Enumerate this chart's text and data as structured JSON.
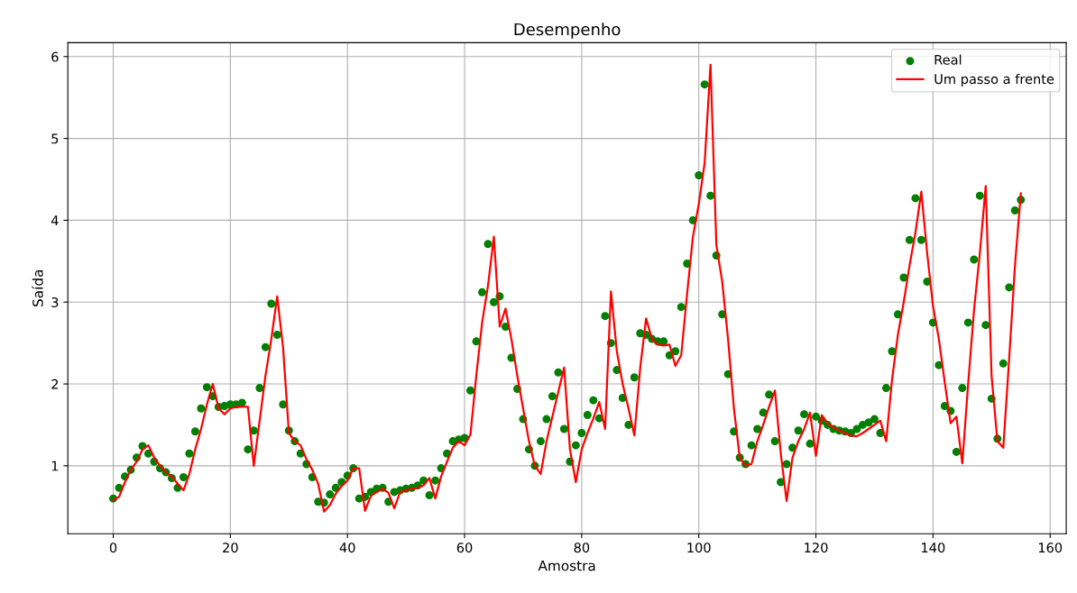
{
  "chart_data": {
    "type": "scatter",
    "title": "Desempenho",
    "xlabel": "Amostra",
    "ylabel": "Saída",
    "x": [
      0,
      1,
      2,
      3,
      4,
      5,
      6,
      7,
      8,
      9,
      10,
      11,
      12,
      13,
      14,
      15,
      16,
      17,
      18,
      19,
      20,
      21,
      22,
      23,
      24,
      25,
      26,
      27,
      28,
      29,
      30,
      31,
      32,
      33,
      34,
      35,
      36,
      37,
      38,
      39,
      40,
      41,
      42,
      43,
      44,
      45,
      46,
      47,
      48,
      49,
      50,
      51,
      52,
      53,
      54,
      55,
      56,
      57,
      58,
      59,
      60,
      61,
      62,
      63,
      64,
      65,
      66,
      67,
      68,
      69,
      70,
      71,
      72,
      73,
      74,
      75,
      76,
      77,
      78,
      79,
      80,
      81,
      82,
      83,
      84,
      85,
      86,
      87,
      88,
      89,
      90,
      91,
      92,
      93,
      94,
      95,
      96,
      97,
      98,
      99,
      100,
      101,
      102,
      103,
      104,
      105,
      106,
      107,
      108,
      109,
      110,
      111,
      112,
      113,
      114,
      115,
      116,
      117,
      118,
      119,
      120,
      121,
      122,
      123,
      124,
      125,
      126,
      127,
      128,
      129,
      130,
      131,
      132,
      133,
      134,
      135,
      136,
      137,
      138,
      139,
      140,
      141,
      142,
      143,
      144,
      145,
      146,
      147,
      148,
      149,
      150,
      151,
      152,
      153,
      154,
      155
    ],
    "series": [
      {
        "name": "Real",
        "color": "#008000",
        "marker": "circle",
        "values": [
          0.6,
          0.73,
          0.87,
          0.95,
          1.1,
          1.24,
          1.15,
          1.05,
          0.97,
          0.92,
          0.85,
          0.73,
          0.86,
          1.15,
          1.42,
          1.7,
          1.96,
          1.85,
          1.72,
          1.73,
          1.75,
          1.75,
          1.77,
          1.2,
          1.43,
          1.95,
          2.45,
          2.98,
          2.6,
          1.75,
          1.43,
          1.3,
          1.15,
          1.02,
          0.86,
          0.56,
          0.55,
          0.65,
          0.73,
          0.8,
          0.88,
          0.97,
          0.6,
          0.62,
          0.68,
          0.72,
          0.73,
          0.56,
          0.68,
          0.7,
          0.72,
          0.73,
          0.76,
          0.82,
          0.64,
          0.82,
          0.97,
          1.15,
          1.3,
          1.32,
          1.34,
          1.92,
          2.52,
          3.12,
          3.71,
          3.0,
          3.07,
          2.7,
          2.32,
          1.94,
          1.57,
          1.2,
          1.0,
          1.3,
          1.57,
          1.85,
          2.14,
          1.45,
          1.05,
          1.25,
          1.4,
          1.62,
          1.8,
          1.58,
          2.83,
          2.5,
          2.17,
          1.83,
          1.5,
          2.08,
          2.62,
          2.6,
          2.55,
          2.52,
          2.52,
          2.35,
          2.4,
          2.94,
          3.47,
          4.0,
          4.55,
          5.66,
          4.3,
          3.57,
          2.85,
          2.12,
          1.42,
          1.1,
          1.02,
          1.25,
          1.45,
          1.65,
          1.87,
          1.3,
          0.8,
          1.02,
          1.22,
          1.43,
          1.63,
          1.27,
          1.6,
          1.55,
          1.5,
          1.45,
          1.43,
          1.42,
          1.4,
          1.45,
          1.5,
          1.53,
          1.57,
          1.4,
          1.95,
          2.4,
          2.85,
          3.3,
          3.76,
          4.27,
          3.76,
          3.25,
          2.75,
          2.23,
          1.73,
          1.67,
          1.17,
          1.95,
          2.75,
          3.52,
          4.3,
          2.72,
          1.82,
          1.33,
          2.25,
          3.18,
          4.12,
          4.25
        ]
      },
      {
        "name": "Um passo a frente",
        "type": "line",
        "color": "#ff0000",
        "line_style": "solid",
        "values": [
          0.58,
          0.62,
          0.8,
          0.95,
          1.05,
          1.2,
          1.25,
          1.1,
          1.0,
          0.92,
          0.87,
          0.78,
          0.7,
          0.9,
          1.2,
          1.45,
          1.75,
          2.0,
          1.7,
          1.63,
          1.7,
          1.72,
          1.72,
          1.72,
          1.0,
          1.55,
          2.1,
          2.55,
          3.07,
          2.45,
          1.4,
          1.3,
          1.25,
          1.08,
          0.95,
          0.78,
          0.44,
          0.52,
          0.66,
          0.75,
          0.82,
          0.97,
          0.97,
          0.45,
          0.63,
          0.68,
          0.72,
          0.67,
          0.48,
          0.68,
          0.7,
          0.72,
          0.73,
          0.76,
          0.85,
          0.6,
          0.87,
          1.05,
          1.22,
          1.3,
          1.25,
          1.38,
          2.1,
          2.75,
          3.2,
          3.8,
          2.7,
          2.92,
          2.55,
          2.1,
          1.7,
          1.3,
          1.0,
          0.9,
          1.3,
          1.6,
          1.9,
          2.2,
          1.2,
          0.8,
          1.2,
          1.4,
          1.58,
          1.78,
          1.45,
          3.13,
          2.4,
          2.0,
          1.7,
          1.37,
          2.2,
          2.8,
          2.55,
          2.48,
          2.47,
          2.48,
          2.22,
          2.35,
          3.1,
          3.8,
          4.2,
          4.7,
          5.9,
          3.7,
          3.25,
          2.55,
          1.7,
          1.1,
          1.0,
          1.02,
          1.3,
          1.5,
          1.72,
          1.92,
          1.15,
          0.57,
          1.1,
          1.3,
          1.45,
          1.65,
          1.12,
          1.62,
          1.52,
          1.47,
          1.43,
          1.4,
          1.37,
          1.36,
          1.4,
          1.45,
          1.5,
          1.55,
          1.3,
          2.05,
          2.6,
          3.0,
          3.45,
          3.85,
          4.35,
          3.6,
          2.95,
          2.55,
          2.02,
          1.52,
          1.6,
          1.03,
          2.0,
          2.9,
          3.6,
          4.42,
          2.1,
          1.3,
          1.22,
          2.3,
          3.45,
          4.33
        ]
      }
    ],
    "xlim": [
      -7.75,
      162.75
    ],
    "xticks": [
      0,
      20,
      40,
      60,
      80,
      100,
      120,
      140,
      160
    ],
    "ylim": [
      0.17,
      6.17
    ],
    "yticks": [
      1,
      2,
      3,
      4,
      5,
      6
    ],
    "grid": true,
    "legend": "top right"
  }
}
